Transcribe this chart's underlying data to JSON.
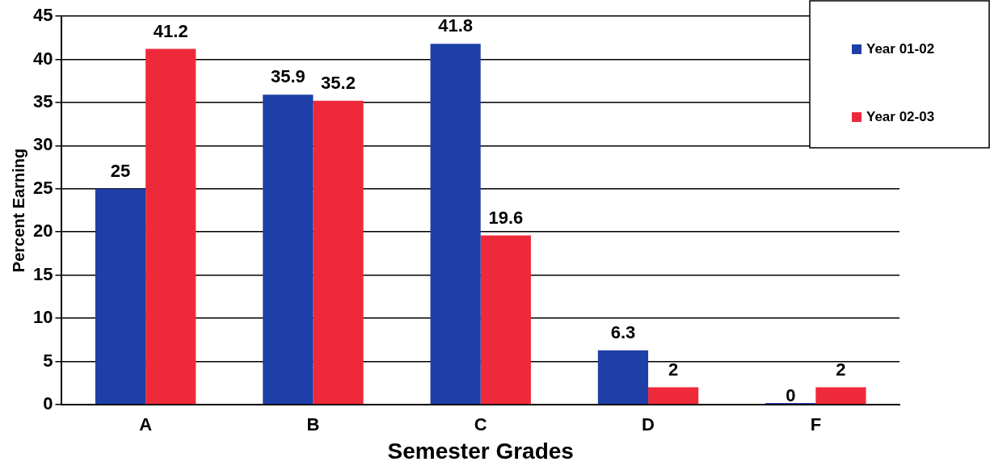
{
  "chart_data": {
    "type": "bar",
    "xlabel": "Semester Grades",
    "ylabel": "Percent Earning",
    "categories": [
      "A",
      "B",
      "C",
      "D",
      "F"
    ],
    "series": [
      {
        "name": "Year 01-02",
        "color": "#1f3fa8",
        "values": [
          25,
          35.9,
          41.8,
          6.3,
          0
        ]
      },
      {
        "name": "Year 02-03",
        "color": "#ee2a3a",
        "values": [
          41.2,
          35.2,
          19.6,
          2,
          2
        ]
      }
    ],
    "ylim": [
      0,
      45
    ],
    "yticks": [
      0,
      5,
      10,
      15,
      20,
      25,
      30,
      35,
      40,
      45
    ],
    "grid": "y",
    "legend": "top right",
    "data_labels": true
  }
}
